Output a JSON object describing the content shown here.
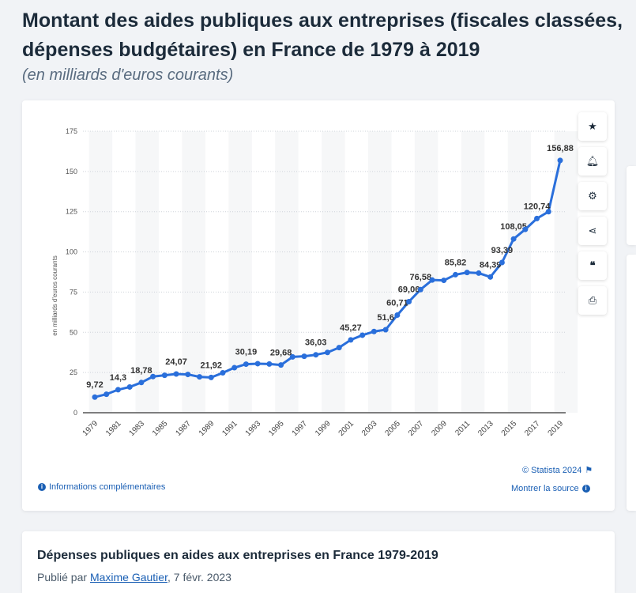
{
  "title_line1": "Montant des aides publiques aux entreprises (fiscales classées,",
  "title_line2": "dépenses budgétaires) en France de 1979 à 2019",
  "subtitle": "(en milliards d'euros courants)",
  "toolbar": [
    "star-icon",
    "bell-icon",
    "gear-icon",
    "share-icon",
    "quote-icon",
    "print-icon"
  ],
  "info_link": "Informations complémentaires",
  "copyright": "© Statista 2024",
  "source_link": "Montrer la source",
  "colors": {
    "line": "#2a6fdb",
    "text": "#1c2b3a",
    "link": "#1a5fb4"
  },
  "chart_data": {
    "type": "line",
    "ylabel": "en milliards d'euros courants",
    "ylim": [
      0,
      175
    ],
    "yticks": [
      0,
      25,
      50,
      75,
      100,
      125,
      150,
      175
    ],
    "xticks": [
      1979,
      1981,
      1983,
      1985,
      1987,
      1989,
      1991,
      1993,
      1995,
      1997,
      1999,
      2001,
      2003,
      2005,
      2007,
      2009,
      2011,
      2013,
      2015,
      2017,
      2019
    ],
    "grid": true,
    "x": [
      1979,
      1980,
      1981,
      1982,
      1983,
      1984,
      1985,
      1986,
      1987,
      1988,
      1989,
      1990,
      1991,
      1992,
      1993,
      1994,
      1995,
      1996,
      1997,
      1998,
      1999,
      2000,
      2001,
      2002,
      2003,
      2004,
      2005,
      2006,
      2007,
      2008,
      2009,
      2010,
      2011,
      2012,
      2013,
      2014,
      2015,
      2016,
      2017,
      2018,
      2019
    ],
    "values": [
      9.72,
      11.5,
      14.3,
      16,
      18.78,
      22.5,
      23.3,
      24.07,
      23.8,
      22.3,
      21.92,
      24.8,
      28,
      30.19,
      30.5,
      30.3,
      29.68,
      34.7,
      35.1,
      36.03,
      37.5,
      40.5,
      45.27,
      48.2,
      50.5,
      51.6,
      60.71,
      69.06,
      76.58,
      82.5,
      82.3,
      85.82,
      87.2,
      86.8,
      84.39,
      93.39,
      108.05,
      114,
      120.74,
      125,
      156.88
    ],
    "data_labels": {
      "1979": "9,72",
      "1981": "14,3",
      "1983": "18,78",
      "1986": "24,07",
      "1989": "21,92",
      "1992": "30,19",
      "1995": "29,68",
      "1998": "36,03",
      "2001": "45,27",
      "2004": "51,6",
      "2005": "60,71",
      "2006": "69,06",
      "2007": "76,58",
      "2010": "85,82",
      "2013": "84,39",
      "2014": "93,39",
      "2015": "108,05",
      "2017": "120,74",
      "2019": "156,88"
    }
  },
  "related": {
    "title": "Dépenses publiques en aides aux entreprises en France 1979-2019",
    "published_by": "Publié par ",
    "author": "Maxime Gautier",
    "date": ", 7 févr. 2023"
  }
}
